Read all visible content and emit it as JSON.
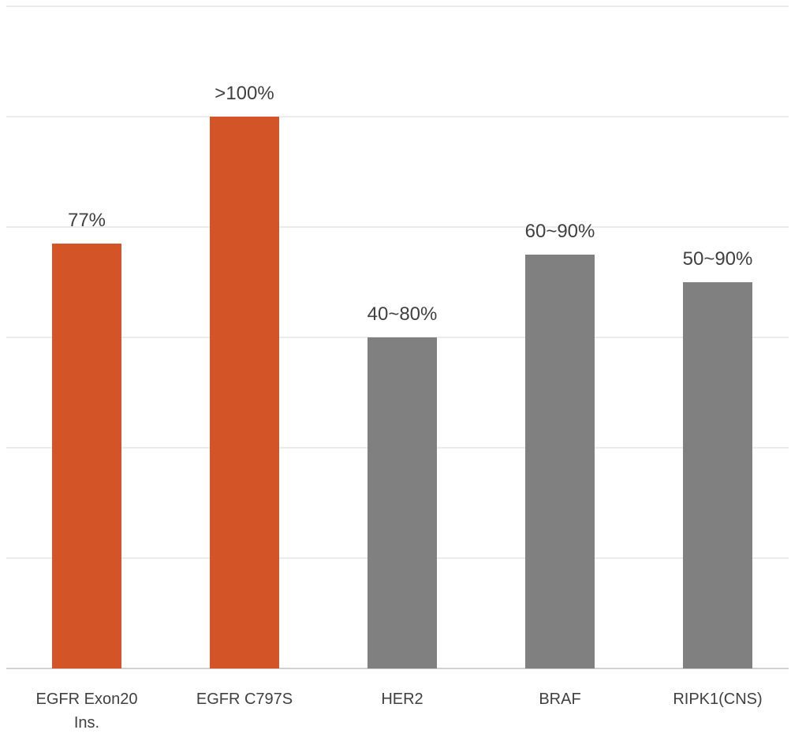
{
  "chart_data": {
    "type": "bar",
    "categories": [
      "EGFR Exon20 Ins.",
      "EGFR C797S",
      "HER2",
      "BRAF",
      "RIPK1(CNS)"
    ],
    "values": [
      77,
      100,
      60,
      75,
      70
    ],
    "data_labels": [
      "77%",
      ">100%",
      "40~80%",
      "60~90%",
      "50~90%"
    ],
    "highlighted": [
      true,
      true,
      false,
      false,
      false
    ],
    "ylim": [
      0,
      120
    ],
    "grid": true,
    "legend": "none",
    "title": "",
    "xlabel": "",
    "ylabel": ""
  },
  "colors": {
    "highlight": "#d35427",
    "default": "#808080",
    "grid": "#d9d9d9",
    "axis": "#bfbfbf",
    "label": "#404040"
  }
}
